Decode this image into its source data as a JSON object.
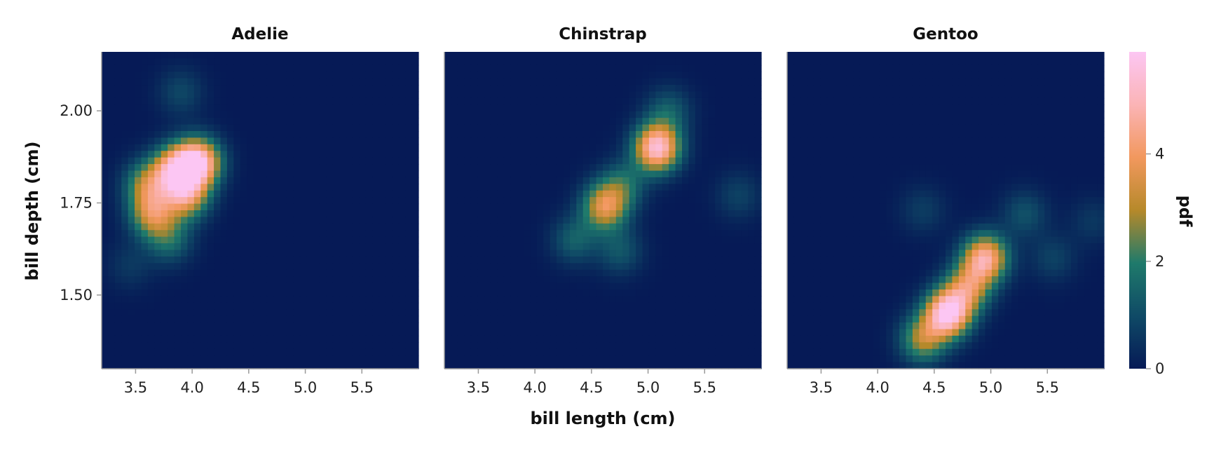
{
  "chart_data": {
    "type": "heatmap",
    "xlabel": "bill length (cm)",
    "ylabel": "bill depth (cm)",
    "xlim": [
      3.2,
      6.0
    ],
    "ylim": [
      1.3,
      2.16
    ],
    "x_ticks": [
      "3.5",
      "4.0",
      "4.5",
      "5.0",
      "5.5"
    ],
    "y_ticks": [
      "1.50",
      "1.75",
      "2.00"
    ],
    "colorbar": {
      "label": "pdf",
      "range": [
        0,
        5.9
      ],
      "ticks": [
        "0",
        "2",
        "4"
      ],
      "colors": [
        "#061a56",
        "#0f4a66",
        "#1f7a6b",
        "#b6892a",
        "#f2985e",
        "#fbb4b6",
        "#fcc6f3"
      ]
    },
    "panels": [
      {
        "title": "Adelie",
        "peaks": [
          {
            "x": 4.05,
            "y": 1.86,
            "density": 5.4
          },
          {
            "x": 3.85,
            "y": 1.84,
            "density": 4.2
          },
          {
            "x": 3.95,
            "y": 1.77,
            "density": 3.6
          },
          {
            "x": 3.65,
            "y": 1.72,
            "density": 3.2
          },
          {
            "x": 3.6,
            "y": 1.8,
            "density": 2.6
          },
          {
            "x": 3.8,
            "y": 1.65,
            "density": 1.6
          },
          {
            "x": 3.9,
            "y": 2.05,
            "density": 0.9
          },
          {
            "x": 3.45,
            "y": 1.58,
            "density": 0.6
          }
        ]
      },
      {
        "title": "Chinstrap",
        "peaks": [
          {
            "x": 5.08,
            "y": 1.9,
            "density": 5.4
          },
          {
            "x": 4.62,
            "y": 1.74,
            "density": 3.6
          },
          {
            "x": 4.78,
            "y": 1.8,
            "density": 1.6
          },
          {
            "x": 4.35,
            "y": 1.65,
            "density": 1.4
          },
          {
            "x": 5.18,
            "y": 2.0,
            "density": 1.3
          },
          {
            "x": 4.75,
            "y": 1.62,
            "density": 1.2
          },
          {
            "x": 5.8,
            "y": 1.77,
            "density": 0.8
          }
        ]
      },
      {
        "title": "Gentoo",
        "peaks": [
          {
            "x": 4.62,
            "y": 1.45,
            "density": 5.9
          },
          {
            "x": 4.95,
            "y": 1.6,
            "density": 4.6
          },
          {
            "x": 4.4,
            "y": 1.38,
            "density": 2.9
          },
          {
            "x": 4.8,
            "y": 1.52,
            "density": 3.2
          },
          {
            "x": 5.3,
            "y": 1.72,
            "density": 1.1
          },
          {
            "x": 5.55,
            "y": 1.6,
            "density": 0.8
          },
          {
            "x": 4.4,
            "y": 1.73,
            "density": 0.7
          },
          {
            "x": 5.9,
            "y": 1.7,
            "density": 0.6
          }
        ]
      }
    ]
  }
}
